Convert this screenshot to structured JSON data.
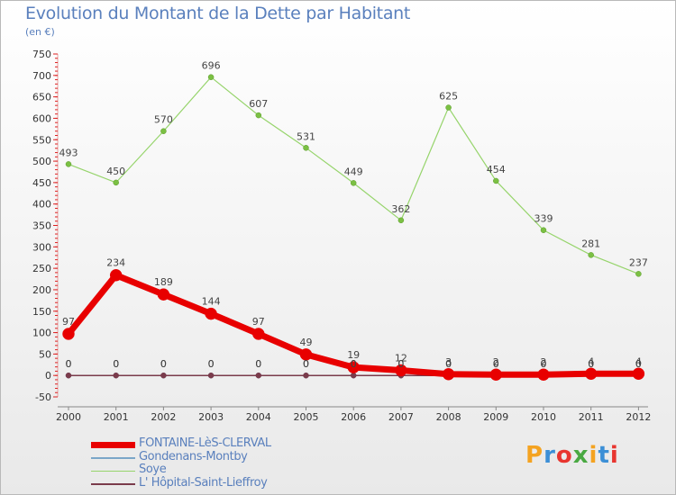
{
  "header": {
    "title": "Evolution du Montant de la Dette par Habitant",
    "subtitle": "(en €)"
  },
  "logo": {
    "text": "Proxiti",
    "colors": [
      "#f4a321",
      "#3c8fd6",
      "#e8352f",
      "#49a942",
      "#f4a321",
      "#3c8fd6",
      "#e8352f"
    ]
  },
  "chart_data": {
    "type": "line",
    "title": "Evolution du Montant de la Dette par Habitant",
    "subtitle": "(en €)",
    "xlabel": "",
    "ylabel": "",
    "x": [
      "2000",
      "2001",
      "2002",
      "2003",
      "2004",
      "2005",
      "2006",
      "2007",
      "2008",
      "2009",
      "2010",
      "2011",
      "2012"
    ],
    "ylim": [
      -50,
      750
    ],
    "yticks": [
      -50,
      0,
      50,
      100,
      150,
      200,
      250,
      300,
      350,
      400,
      450,
      500,
      550,
      600,
      650,
      700,
      750
    ],
    "grid": false,
    "legend_position": "bottom",
    "series": [
      {
        "name": "FONTAINE-LèS-CLERVAL",
        "color": "#e80000",
        "values": [
          97,
          234,
          189,
          144,
          97,
          49,
          19,
          12,
          3,
          2,
          2,
          4,
          4
        ],
        "labels": [
          "97",
          "234",
          "189",
          "144",
          "97",
          "49",
          "19",
          "12",
          "3",
          "2",
          "2",
          "4",
          "4"
        ]
      },
      {
        "name": "Gondenans-Montby",
        "color": "#7aa6c8",
        "values": [
          0,
          0,
          0,
          0,
          0,
          0,
          0,
          0,
          0,
          0,
          0,
          0,
          0
        ],
        "labels": [
          "0",
          "0",
          "0",
          "0",
          "0",
          "0",
          "0",
          "0",
          "0",
          "0",
          "0",
          "0",
          "0"
        ]
      },
      {
        "name": "Soye",
        "color": "#96d46b",
        "values": [
          493,
          450,
          570,
          696,
          607,
          531,
          449,
          362,
          625,
          454,
          339,
          281,
          237
        ],
        "labels": [
          "493",
          "450",
          "570",
          "696",
          "607",
          "531",
          "449",
          "362",
          "625",
          "454",
          "339",
          "281",
          "237"
        ]
      },
      {
        "name": "L' Hôpital-Saint-Lieffroy",
        "color": "#7a3b4b",
        "values": [
          0,
          0,
          0,
          0,
          0,
          0,
          0,
          0,
          0,
          0,
          0,
          0,
          0
        ],
        "labels": [
          "0",
          "0",
          "0",
          "0",
          "0",
          "0",
          "0",
          "0",
          "0",
          "0",
          "0",
          "0",
          "0"
        ]
      }
    ]
  }
}
